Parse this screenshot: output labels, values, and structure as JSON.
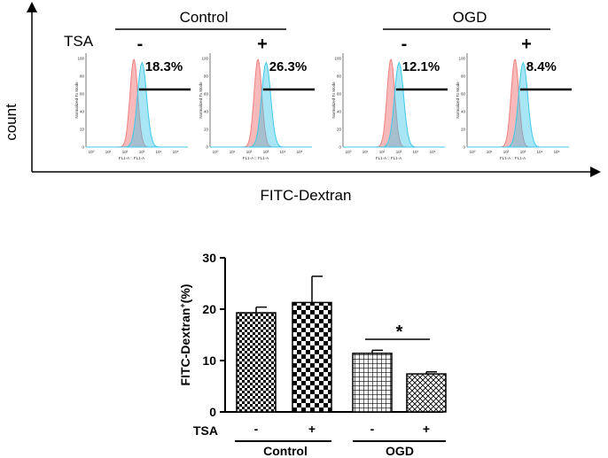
{
  "top_panel": {
    "y_axis_label": "count",
    "x_axis_label": "FITC-Dextran",
    "row_label": "TSA",
    "groups": [
      "Control",
      "OGD"
    ],
    "histograms": [
      {
        "group": "Control",
        "tsa": "-",
        "percent_label": "18.3%"
      },
      {
        "group": "Control",
        "tsa": "+",
        "percent_label": "26.3%"
      },
      {
        "group": "OGD",
        "tsa": "-",
        "percent_label": "12.1%"
      },
      {
        "group": "OGD",
        "tsa": "+",
        "percent_label": "8.4%"
      }
    ],
    "inset_y_label": "Normalized To Mode",
    "inset_x_label": "FL1-A :: FL1-A",
    "inset_y_ticks": [
      "0",
      "20",
      "40",
      "60",
      "80",
      "100"
    ],
    "inset_x_ticks": [
      "10⁰",
      "10¹",
      "10²",
      "10³",
      "10⁴",
      "10⁵"
    ],
    "colors": {
      "control_curve": "#f08080",
      "treated_curve": "#40c8e8"
    }
  },
  "chart_data": {
    "type": "bar",
    "categories": [
      "Control TSA-",
      "Control TSA+",
      "OGD TSA-",
      "OGD TSA+"
    ],
    "values": [
      19.3,
      21.3,
      11.4,
      7.4
    ],
    "errors": [
      1.1,
      5.1,
      0.6,
      0.4
    ],
    "patterns": [
      "fine-checker",
      "coarse-checker",
      "grid",
      "diagonal"
    ],
    "ylabel": "FITC-Dextran",
    "ylabel_superscript": "+",
    "ylabel_unit": "(%)",
    "ylim": [
      0,
      30
    ],
    "yticks": [
      "0",
      "10",
      "20",
      "30"
    ],
    "tsa_label": "TSA",
    "tsa_signs": [
      "-",
      "+",
      "-",
      "+"
    ],
    "group_labels": [
      "Control",
      "OGD"
    ],
    "significance": {
      "between": [
        2,
        3
      ],
      "label": "*"
    }
  }
}
